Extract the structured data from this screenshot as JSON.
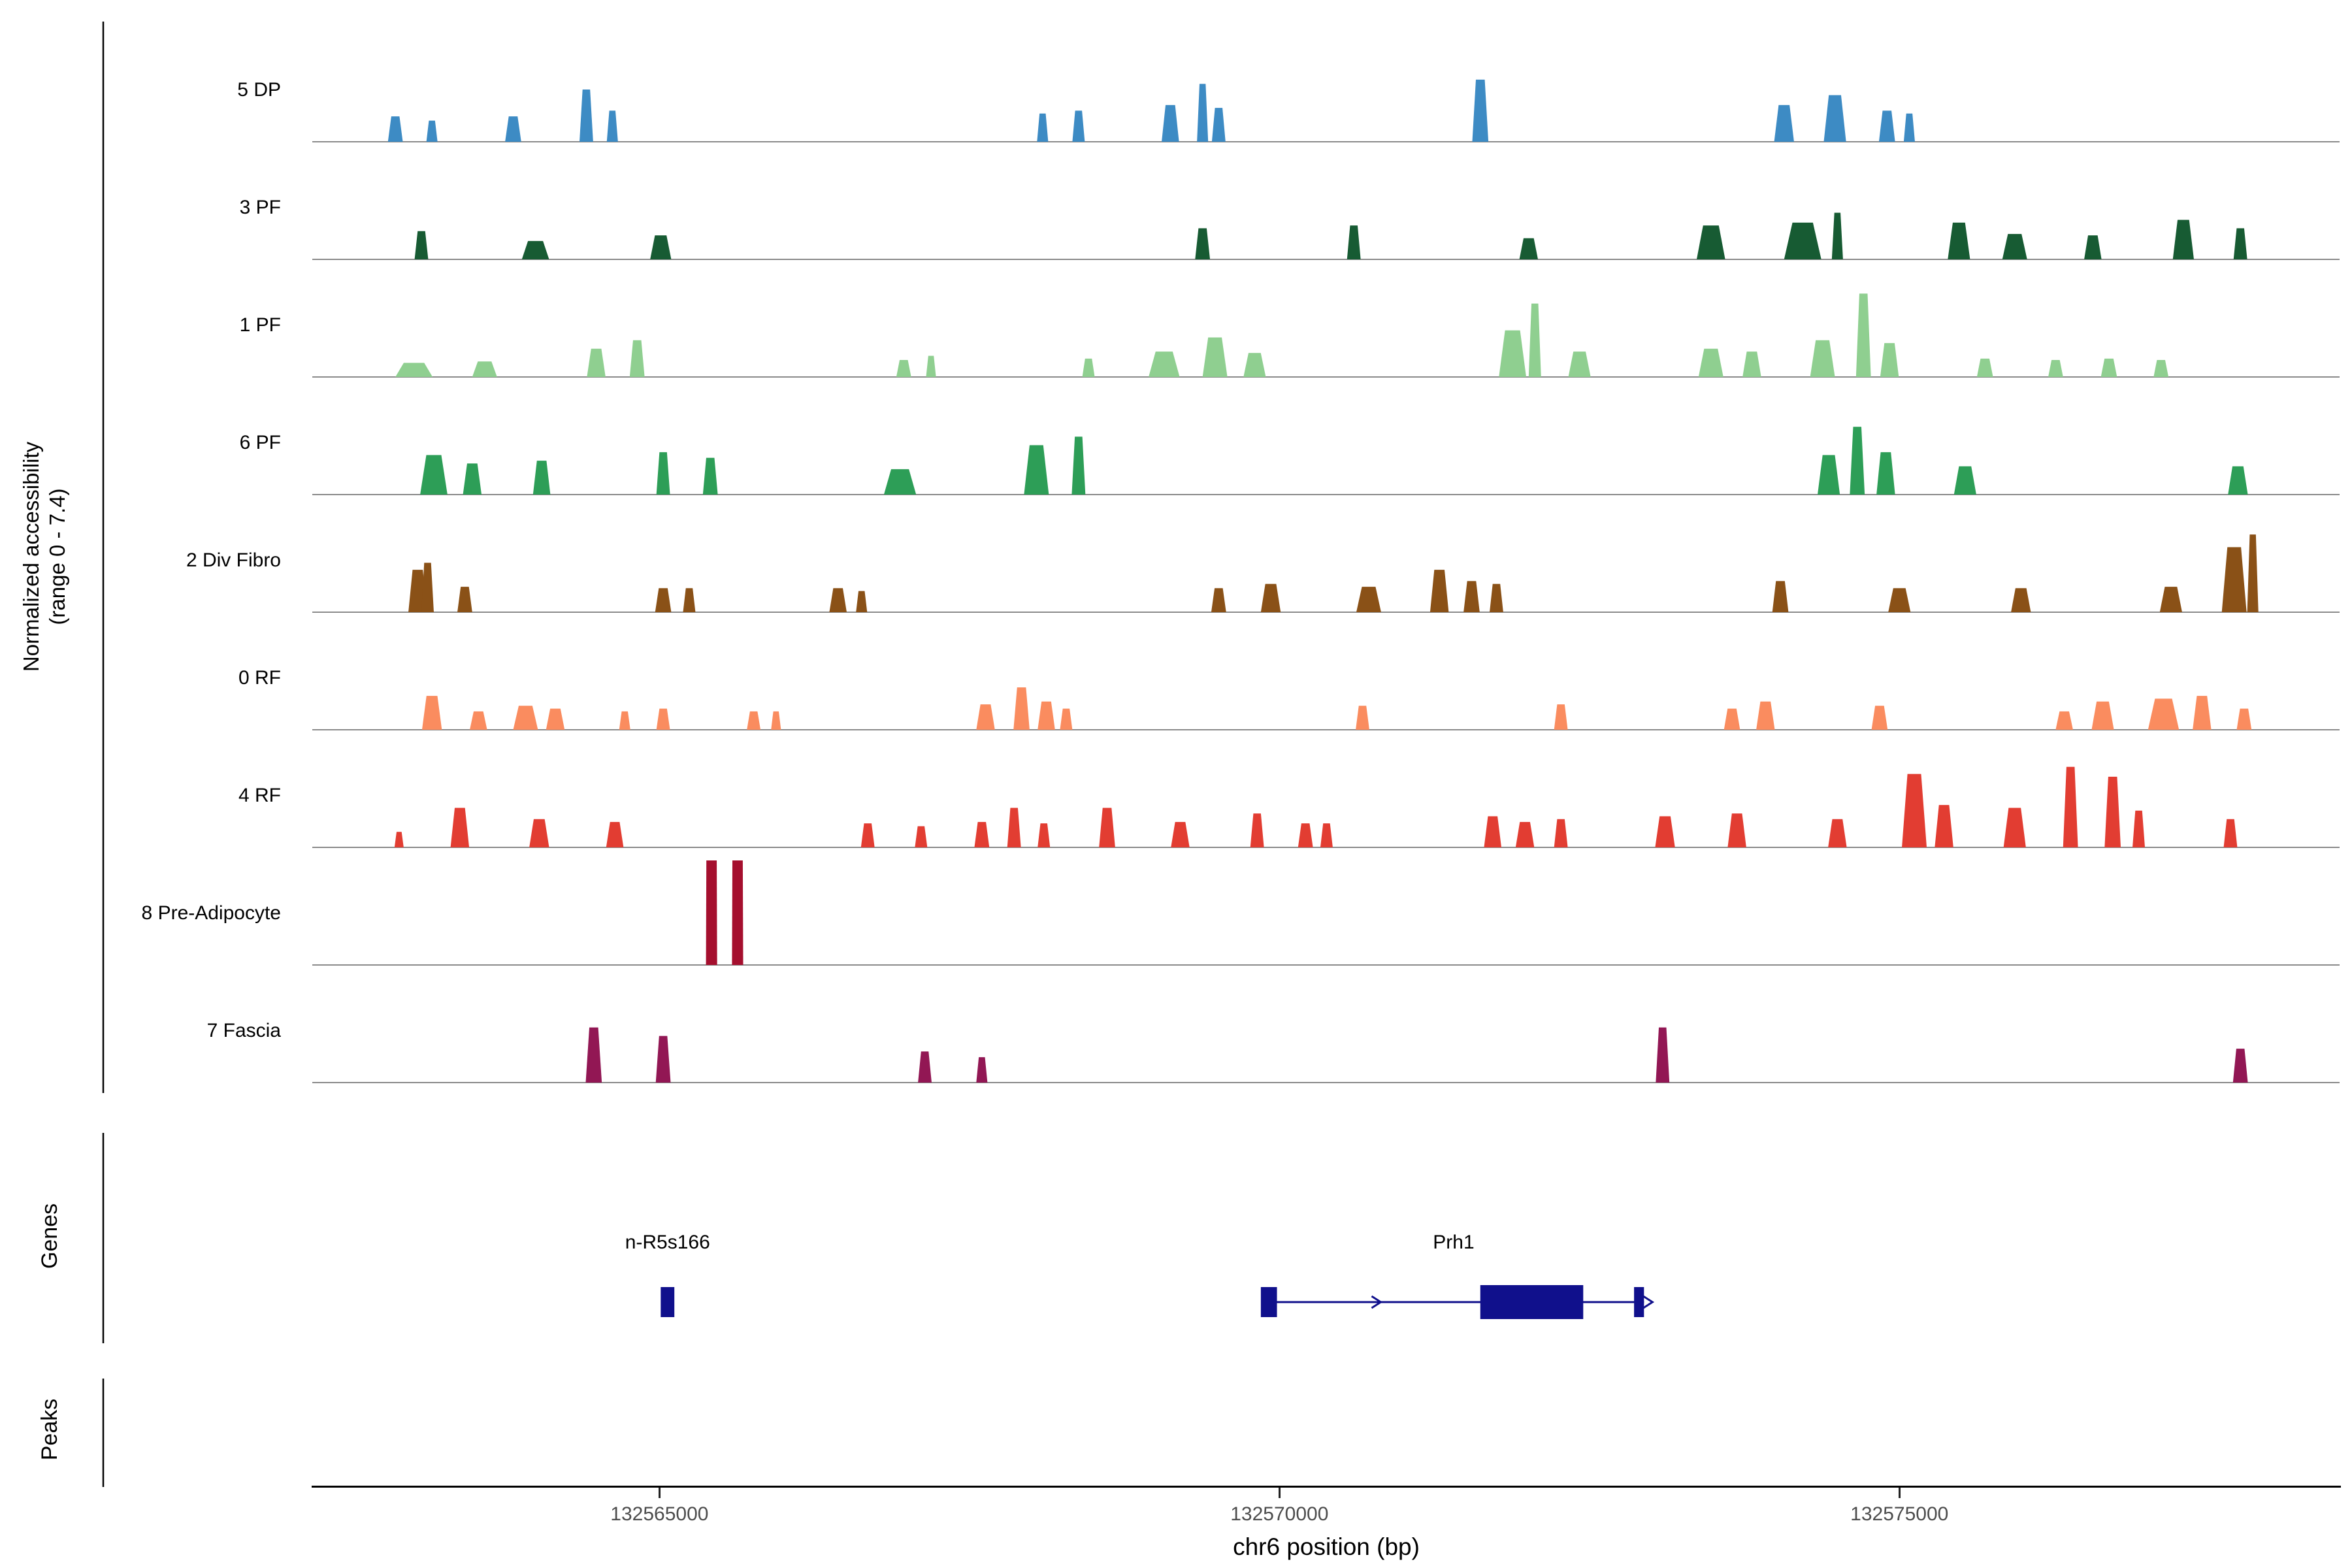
{
  "figure": {
    "y_axis_label_line1": "Normalized accessibility",
    "y_axis_label_line2": "(range 0 - 7.4)",
    "genes_section_label": "Genes",
    "peaks_section_label": "Peaks",
    "x_axis_title": "chr6 position (bp)"
  },
  "chart_data": {
    "type": "area",
    "title": "",
    "xlabel": "chr6 position (bp)",
    "ylabel": "Normalized accessibility (range 0 - 7.4)",
    "xlim": [
      132562200,
      132578550
    ],
    "ylim_per_track": [
      0,
      7.4
    ],
    "x_ticks": [
      132565000,
      132570000,
      132575000
    ],
    "grid": false,
    "legend": "none",
    "tracks": [
      {
        "label": "5 DP",
        "color": "#3d8bc4",
        "peaks": [
          [
            132562870,
            120,
            1.8
          ],
          [
            132563165,
            90,
            1.5
          ],
          [
            132563820,
            130,
            1.8
          ],
          [
            132564410,
            110,
            3.7
          ],
          [
            132564620,
            90,
            2.2
          ],
          [
            132568090,
            90,
            2.0
          ],
          [
            132568380,
            100,
            2.2
          ],
          [
            132569120,
            140,
            2.6
          ],
          [
            132569380,
            90,
            4.1
          ],
          [
            132569510,
            110,
            2.4
          ],
          [
            132571620,
            130,
            4.4
          ],
          [
            132574070,
            160,
            2.6
          ],
          [
            132574480,
            180,
            3.3
          ],
          [
            132574900,
            130,
            2.2
          ],
          [
            132575080,
            90,
            2.0
          ]
        ]
      },
      {
        "label": "3 PF",
        "color": "#175b33",
        "peaks": [
          [
            132563080,
            110,
            2.0
          ],
          [
            132564000,
            220,
            1.3
          ],
          [
            132565010,
            170,
            1.7
          ],
          [
            132569380,
            120,
            2.2
          ],
          [
            132570600,
            110,
            2.4
          ],
          [
            132572010,
            150,
            1.5
          ],
          [
            132573480,
            230,
            2.4
          ],
          [
            132574220,
            300,
            2.6
          ],
          [
            132574500,
            90,
            3.3
          ],
          [
            132575480,
            180,
            2.6
          ],
          [
            132575930,
            200,
            1.8
          ],
          [
            132576560,
            140,
            1.7
          ],
          [
            132577290,
            170,
            2.8
          ],
          [
            132577750,
            110,
            2.2
          ]
        ]
      },
      {
        "label": "1 PF",
        "color": "#8fcf90",
        "peaks": [
          [
            132563020,
            300,
            1.0
          ],
          [
            132563590,
            200,
            1.1
          ],
          [
            132564490,
            150,
            2.0
          ],
          [
            132564820,
            120,
            2.6
          ],
          [
            132566970,
            120,
            1.2
          ],
          [
            132567190,
            80,
            1.5
          ],
          [
            132568460,
            100,
            1.3
          ],
          [
            132569070,
            250,
            1.8
          ],
          [
            132569480,
            200,
            2.8
          ],
          [
            132569800,
            180,
            1.7
          ],
          [
            132571880,
            220,
            3.3
          ],
          [
            132572060,
            100,
            5.2
          ],
          [
            132572420,
            180,
            1.8
          ],
          [
            132573480,
            200,
            2.0
          ],
          [
            132573810,
            150,
            1.8
          ],
          [
            132574380,
            200,
            2.6
          ],
          [
            132574710,
            120,
            5.9
          ],
          [
            132574920,
            150,
            2.4
          ],
          [
            132575690,
            130,
            1.3
          ],
          [
            132576260,
            120,
            1.2
          ],
          [
            132576690,
            130,
            1.3
          ],
          [
            132577110,
            120,
            1.2
          ]
        ]
      },
      {
        "label": "6 PF",
        "color": "#2d9e57",
        "peaks": [
          [
            132563180,
            220,
            2.8
          ],
          [
            132563490,
            150,
            2.2
          ],
          [
            132564050,
            140,
            2.4
          ],
          [
            132565030,
            110,
            3.0
          ],
          [
            132565410,
            120,
            2.6
          ],
          [
            132566940,
            260,
            1.8
          ],
          [
            132568040,
            200,
            3.5
          ],
          [
            132568380,
            110,
            4.1
          ],
          [
            132574430,
            180,
            2.8
          ],
          [
            132574660,
            120,
            4.8
          ],
          [
            132574890,
            150,
            3.0
          ],
          [
            132575530,
            180,
            2.0
          ],
          [
            132577730,
            160,
            2.0
          ]
        ]
      },
      {
        "label": "2 Div Fibro",
        "color": "#8a5117",
        "peaks": [
          [
            132563050,
            150,
            3.0
          ],
          [
            132563130,
            100,
            3.5
          ],
          [
            132563430,
            120,
            1.8
          ],
          [
            132565030,
            130,
            1.7
          ],
          [
            132565240,
            100,
            1.7
          ],
          [
            132566440,
            140,
            1.7
          ],
          [
            132566630,
            90,
            1.5
          ],
          [
            132569510,
            120,
            1.7
          ],
          [
            132569930,
            160,
            2.0
          ],
          [
            132570720,
            200,
            1.8
          ],
          [
            132571290,
            150,
            3.0
          ],
          [
            132571550,
            130,
            2.2
          ],
          [
            132571750,
            110,
            2.0
          ],
          [
            132574040,
            130,
            2.2
          ],
          [
            132575000,
            180,
            1.7
          ],
          [
            132575980,
            160,
            1.7
          ],
          [
            132577190,
            180,
            1.8
          ],
          [
            132577700,
            200,
            4.6
          ],
          [
            132577850,
            90,
            5.5
          ]
        ]
      },
      {
        "label": "0 RF",
        "color": "#fa8c5f",
        "peaks": [
          [
            132563165,
            160,
            2.4
          ],
          [
            132563540,
            140,
            1.3
          ],
          [
            132563920,
            200,
            1.7
          ],
          [
            132564160,
            150,
            1.5
          ],
          [
            132564720,
            90,
            1.3
          ],
          [
            132565030,
            110,
            1.5
          ],
          [
            132565760,
            110,
            1.3
          ],
          [
            132565940,
            80,
            1.3
          ],
          [
            132567630,
            150,
            1.8
          ],
          [
            132567920,
            130,
            3.0
          ],
          [
            132568120,
            140,
            2.0
          ],
          [
            132568280,
            100,
            1.5
          ],
          [
            132570670,
            110,
            1.7
          ],
          [
            132572270,
            110,
            1.8
          ],
          [
            132573650,
            130,
            1.5
          ],
          [
            132573920,
            150,
            2.0
          ],
          [
            132574840,
            130,
            1.7
          ],
          [
            132576330,
            140,
            1.3
          ],
          [
            132576640,
            180,
            2.0
          ],
          [
            132577130,
            250,
            2.2
          ],
          [
            132577440,
            150,
            2.4
          ],
          [
            132577780,
            120,
            1.5
          ]
        ]
      },
      {
        "label": "4 RF",
        "color": "#e23d32",
        "peaks": [
          [
            132562900,
            60,
            1.1
          ],
          [
            132563390,
            150,
            2.8
          ],
          [
            132564030,
            160,
            2.0
          ],
          [
            132564640,
            140,
            1.8
          ],
          [
            132566680,
            110,
            1.7
          ],
          [
            132567110,
            100,
            1.5
          ],
          [
            132567600,
            120,
            1.8
          ],
          [
            132567860,
            110,
            2.8
          ],
          [
            132568100,
            100,
            1.7
          ],
          [
            132568610,
            130,
            2.8
          ],
          [
            132569200,
            150,
            1.8
          ],
          [
            132569820,
            110,
            2.4
          ],
          [
            132570210,
            120,
            1.7
          ],
          [
            132570380,
            100,
            1.7
          ],
          [
            132571720,
            140,
            2.2
          ],
          [
            132571980,
            150,
            1.8
          ],
          [
            132572270,
            110,
            2.0
          ],
          [
            132573110,
            160,
            2.2
          ],
          [
            132573690,
            150,
            2.4
          ],
          [
            132574500,
            150,
            2.0
          ],
          [
            132575120,
            200,
            5.2
          ],
          [
            132575360,
            150,
            3.0
          ],
          [
            132575930,
            180,
            2.8
          ],
          [
            132576380,
            120,
            5.7
          ],
          [
            132576720,
            130,
            5.0
          ],
          [
            132576930,
            100,
            2.6
          ],
          [
            132577670,
            110,
            2.0
          ]
        ]
      },
      {
        "label": "8 Pre-Adipocyte",
        "color": "#a50f2e",
        "peaks": [
          [
            132565420,
            90,
            7.4
          ],
          [
            132565630,
            90,
            7.4
          ]
        ]
      },
      {
        "label": "7 Fascia",
        "color": "#921754",
        "peaks": [
          [
            132564470,
            130,
            3.9
          ],
          [
            132565030,
            120,
            3.3
          ],
          [
            132567140,
            110,
            2.2
          ],
          [
            132567600,
            90,
            1.8
          ],
          [
            132573090,
            110,
            3.9
          ],
          [
            132577750,
            120,
            2.4
          ]
        ]
      }
    ],
    "genes": [
      {
        "name": "n-R5s166",
        "type": "box",
        "start": 132565010,
        "end": 132565120
      },
      {
        "name": "Prh1",
        "type": "gene_model",
        "start": 132569870,
        "end": 132572940,
        "strand": "+",
        "exons": [
          [
            132569850,
            132569980
          ],
          [
            132571620,
            132572450
          ],
          [
            132572860,
            132572940
          ]
        ]
      }
    ],
    "peaks_track": [],
    "gene_color": "#10108c"
  }
}
